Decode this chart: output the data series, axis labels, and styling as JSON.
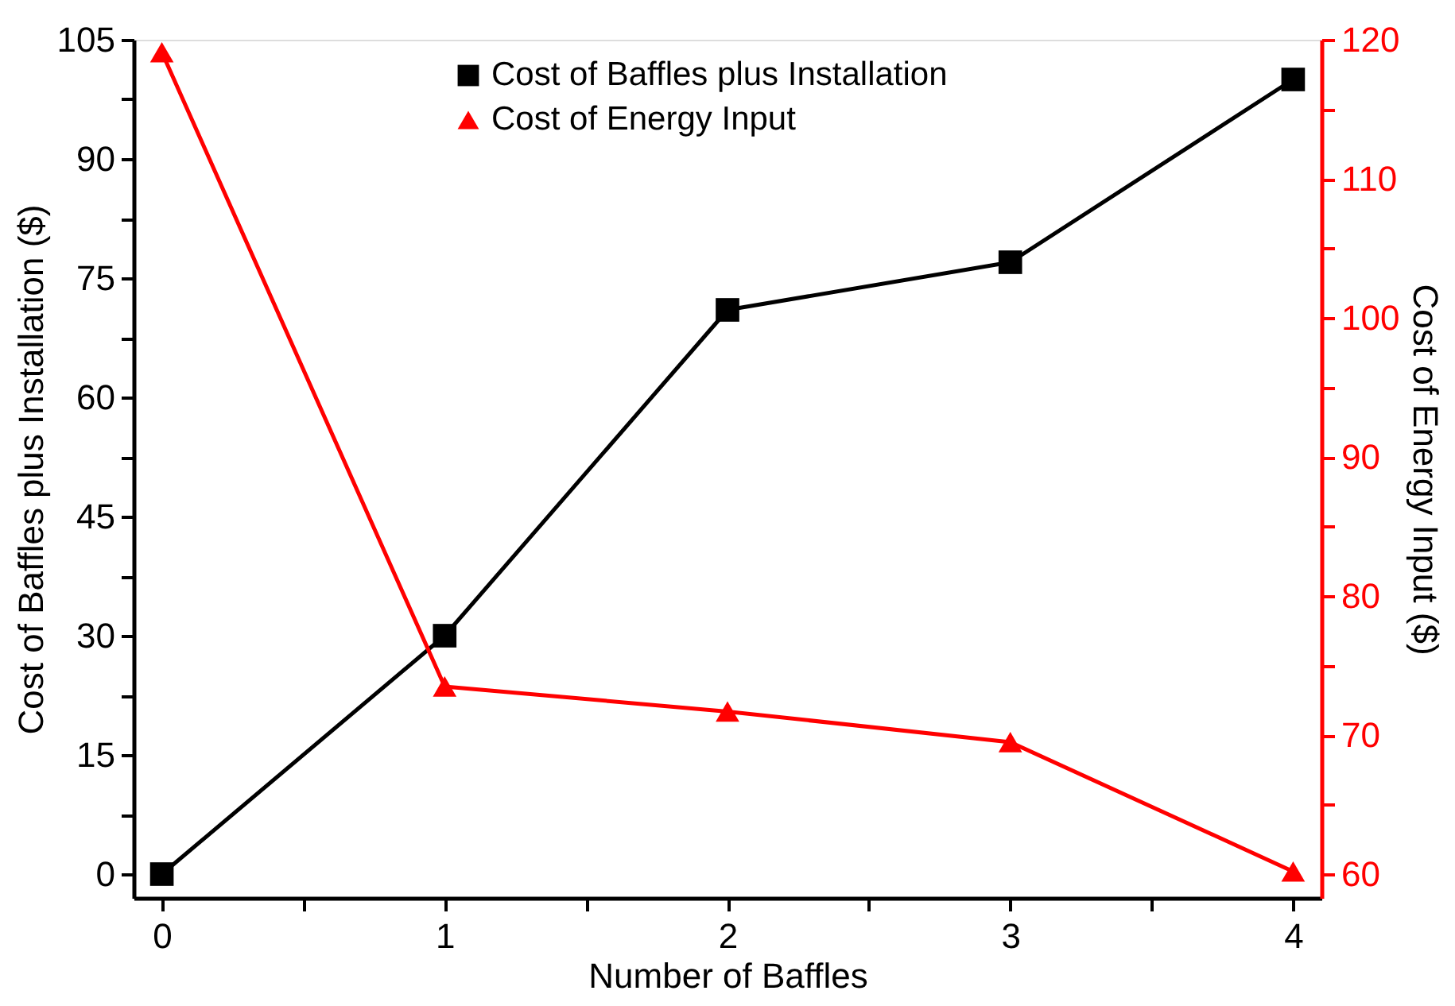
{
  "chart_data": {
    "type": "line",
    "xlabel": "Number of Baffles",
    "ylabel": "Cost of Baffles plus Installation ($)",
    "y2label": "Cost of Energy Input ($)",
    "x": [
      0,
      1,
      2,
      3,
      4
    ],
    "series": [
      {
        "name": "Cost of Baffles plus Installation",
        "color": "#000000",
        "marker": "square",
        "values": [
          0,
          30,
          71,
          77,
          100
        ]
      },
      {
        "name": "Cost of Energy Input",
        "color": "#ff0000",
        "marker": "triangle",
        "axis": "y2",
        "values": [
          119.1,
          73.5,
          71.7,
          69.5,
          60.2
        ]
      }
    ],
    "xlim": [
      -0.1,
      4.1
    ],
    "xticks": [
      0,
      {
        "value": 0.5,
        "label": null
      },
      1,
      {
        "value": 1.5,
        "label": null
      },
      2,
      {
        "value": 2.5,
        "label": null
      },
      3,
      {
        "value": 3.5,
        "label": null
      },
      4
    ],
    "ylim": [
      -3,
      105
    ],
    "yticks": [
      0,
      {
        "value": 7.5,
        "label": null
      },
      15,
      {
        "value": 22.5,
        "label": null
      },
      30,
      {
        "value": 37.5,
        "label": null
      },
      45,
      {
        "value": 52.5,
        "label": null
      },
      60,
      {
        "value": 67.5,
        "label": null
      },
      75,
      {
        "value": 82.5,
        "label": null
      },
      90,
      {
        "value": 97.5,
        "label": null
      },
      105
    ],
    "y2lim": [
      58.3,
      120
    ],
    "y2ticks": [
      60,
      {
        "value": 65,
        "label": null
      },
      70,
      {
        "value": 75,
        "label": null
      },
      80,
      {
        "value": 85,
        "label": null
      },
      90,
      {
        "value": 95,
        "label": null
      },
      100,
      {
        "value": 105,
        "label": null
      },
      110,
      {
        "value": 115,
        "label": null
      },
      120
    ],
    "grid": false,
    "legend": "top",
    "line_style": "solid"
  }
}
